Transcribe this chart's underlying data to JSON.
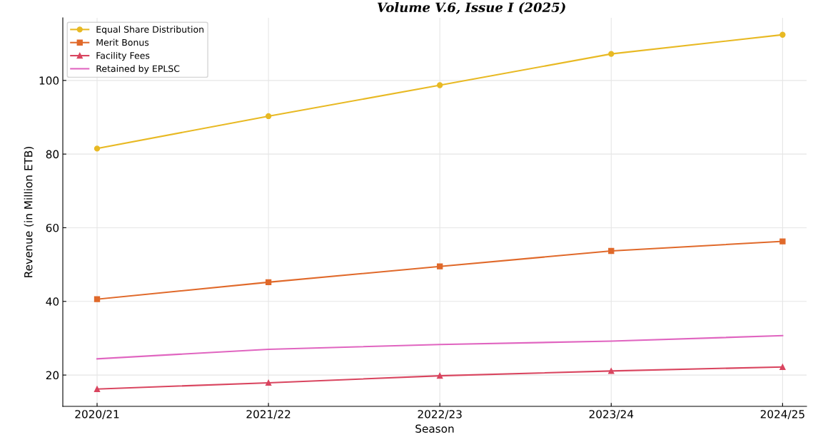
{
  "chart_data": {
    "type": "line",
    "xlabel": "Season",
    "ylabel": "Revenue (in Million ETB)",
    "categories": [
      "2020/21",
      "2021/22",
      "2022/23",
      "2023/24",
      "2024/25"
    ],
    "series": [
      {
        "name": "Equal Share Distribution",
        "color": "#e8b923",
        "marker": "circle",
        "values": [
          81.5,
          90.3,
          98.7,
          107.2,
          112.4
        ]
      },
      {
        "name": "Merit Bonus",
        "color": "#e0692a",
        "marker": "square",
        "values": [
          40.6,
          45.2,
          49.5,
          53.7,
          56.3
        ]
      },
      {
        "name": "Facility Fees",
        "color": "#d9455f",
        "marker": "triangle",
        "values": [
          16.2,
          17.9,
          19.8,
          21.1,
          22.2
        ]
      },
      {
        "name": "Retained by EPLSC",
        "color": "#e065c0",
        "marker": "none",
        "values": [
          24.4,
          27.0,
          28.3,
          29.2,
          30.7
        ]
      }
    ],
    "ylim": [
      11.5,
      117
    ],
    "yticks": [
      20,
      40,
      60,
      80,
      100
    ],
    "grid": true,
    "legend": "top left",
    "annotations": [
      "Volume V.6, Issue I (2025)"
    ]
  }
}
